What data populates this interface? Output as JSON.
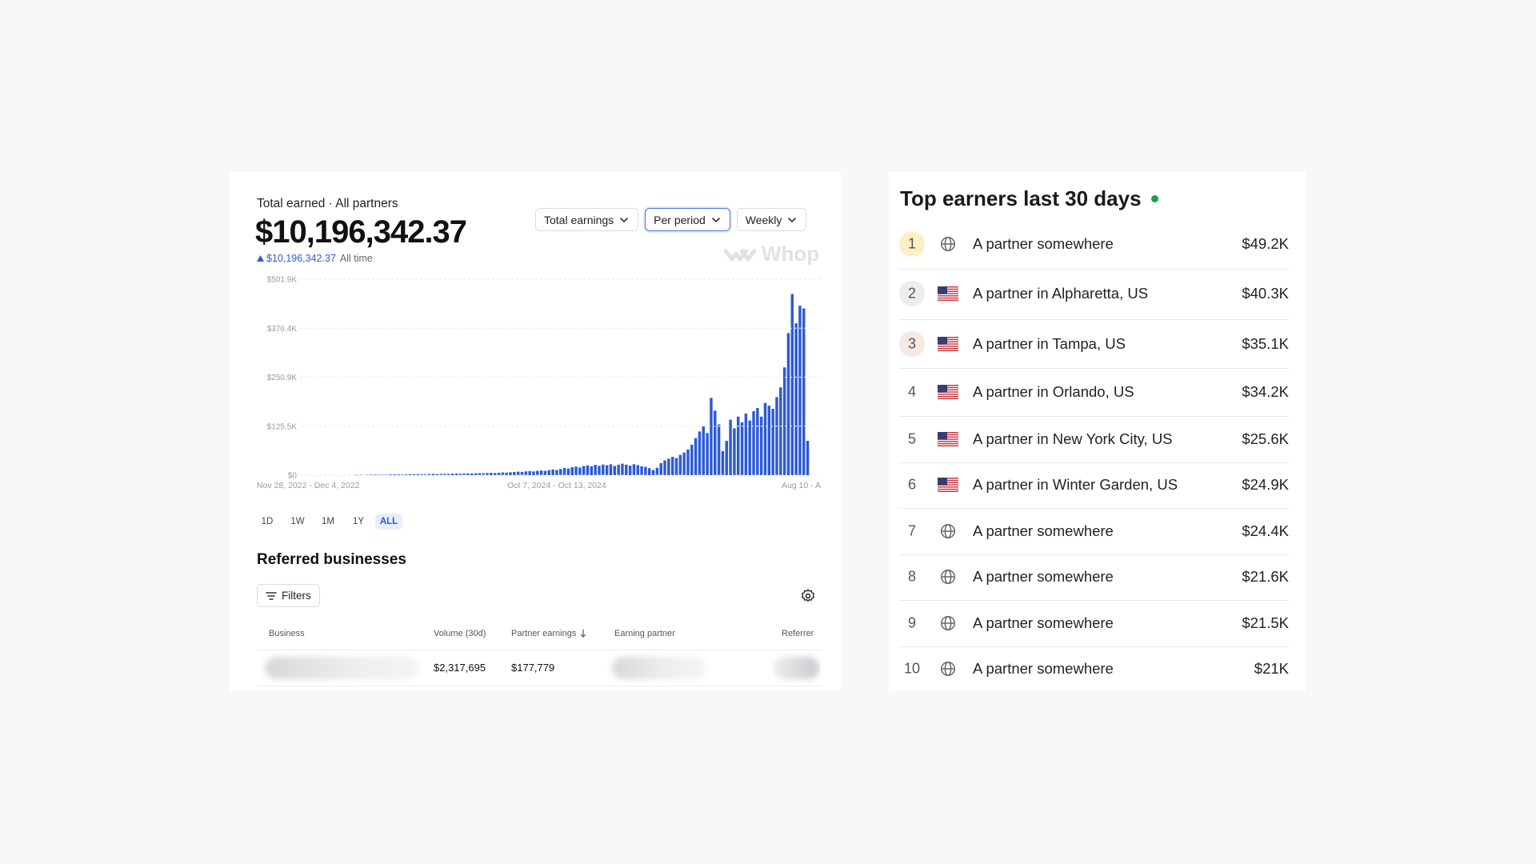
{
  "earnings_panel": {
    "label": "Total earned · All partners",
    "total": "$10,196,342.37",
    "change": "$10,196,342.37",
    "change_period": "All time",
    "dropdowns": [
      "Total earnings",
      "Per period",
      "Weekly"
    ],
    "watermark": "Whop",
    "ranges": [
      "1D",
      "1W",
      "1M",
      "1Y",
      "ALL"
    ]
  },
  "chart_data": {
    "type": "bar",
    "color": "#2c5ad6",
    "grid": true,
    "ylim": [
      0,
      501900
    ],
    "yticks": [
      {
        "value": 0,
        "label": "$0"
      },
      {
        "value": 125475,
        "label": "$125.5K"
      },
      {
        "value": 250950,
        "label": "$250.9K"
      },
      {
        "value": 376425,
        "label": "$376.4K"
      },
      {
        "value": 501900,
        "label": "$501.9K"
      }
    ],
    "categories": [
      "Nov 28, 2022 - Dec 4, 2022",
      null,
      null,
      null,
      null,
      null,
      null,
      null,
      null,
      null,
      null,
      null,
      null,
      null,
      null,
      null,
      null,
      null,
      null,
      null,
      null,
      null,
      null,
      null,
      null,
      null,
      null,
      null,
      null,
      null,
      null,
      null,
      null,
      null,
      null,
      null,
      null,
      null,
      null,
      null,
      null,
      null,
      null,
      null,
      null,
      null,
      null,
      null,
      null,
      null,
      null,
      null,
      null,
      null,
      null,
      null,
      null,
      null,
      null,
      null,
      null,
      null,
      null,
      null,
      null,
      null,
      "Oct 7, 2024 - Oct 13, 2024",
      null,
      null,
      null,
      null,
      null,
      null,
      null,
      null,
      null,
      null,
      null,
      null,
      null,
      null,
      null,
      null,
      null,
      null,
      null,
      null,
      null,
      null,
      null,
      null,
      null,
      null,
      null,
      null,
      null,
      null,
      null,
      null,
      null,
      null,
      null,
      null,
      null,
      null,
      null,
      null,
      null,
      null,
      null,
      null,
      null,
      null,
      null,
      null,
      null,
      null,
      null,
      null,
      null,
      null,
      null,
      null,
      null,
      null,
      null,
      null,
      null,
      null,
      null,
      null,
      "Aug 10 - A"
    ],
    "values": [
      0,
      0,
      0,
      0,
      0,
      0,
      0,
      0,
      0,
      0,
      0,
      0,
      0,
      0,
      1000,
      1200,
      1100,
      1300,
      1500,
      1400,
      1600,
      1800,
      1700,
      2000,
      2100,
      2300,
      2000,
      2400,
      2600,
      2500,
      2800,
      3000,
      2700,
      3100,
      3300,
      3000,
      3500,
      3800,
      3400,
      4000,
      4200,
      3900,
      4500,
      4800,
      4400,
      5000,
      5300,
      4900,
      5600,
      6000,
      5500,
      6300,
      7000,
      6600,
      7500,
      8200,
      9000,
      8500,
      9800,
      10500,
      9600,
      11200,
      12000,
      11000,
      12800,
      14500,
      13200,
      16000,
      18500,
      17000,
      20500,
      22000,
      19800,
      23500,
      25000,
      22800,
      26500,
      24000,
      27200,
      25500,
      28000,
      23800,
      26900,
      29500,
      27000,
      24500,
      28200,
      26000,
      23000,
      21500,
      18000,
      13500,
      19000,
      31000,
      38000,
      42500,
      47000,
      44000,
      52000,
      58000,
      66000,
      78000,
      95000,
      112000,
      125000,
      108000,
      198000,
      165000,
      130000,
      62000,
      88000,
      142000,
      120000,
      150000,
      135000,
      158000,
      140000,
      164000,
      172000,
      150000,
      185000,
      178000,
      170000,
      200000,
      225000,
      276000,
      364000,
      464000,
      389000,
      434000,
      427000,
      88000
    ]
  },
  "referred_businesses": {
    "title": "Referred businesses",
    "filter_button": "Filters",
    "columns": [
      "Business",
      "Volume (30d)",
      "Partner earnings",
      "Earning partner",
      "Referrer"
    ],
    "rows": [
      {
        "volume": "$2,317,695",
        "partner_earnings": "$177,779"
      }
    ]
  },
  "top_earners": {
    "title": "Top earners last 30 days",
    "rows": [
      {
        "rank": 1,
        "icon": "globe",
        "partner": "A partner somewhere",
        "amount": "$49.2K"
      },
      {
        "rank": 2,
        "icon": "us",
        "partner": "A partner in Alpharetta, US",
        "amount": "$40.3K"
      },
      {
        "rank": 3,
        "icon": "us",
        "partner": "A partner in Tampa, US",
        "amount": "$35.1K"
      },
      {
        "rank": 4,
        "icon": "us",
        "partner": "A partner in Orlando, US",
        "amount": "$34.2K"
      },
      {
        "rank": 5,
        "icon": "us",
        "partner": "A partner in New York City, US",
        "amount": "$25.6K"
      },
      {
        "rank": 6,
        "icon": "us",
        "partner": "A partner in Winter Garden, US",
        "amount": "$24.9K"
      },
      {
        "rank": 7,
        "icon": "globe",
        "partner": "A partner somewhere",
        "amount": "$24.4K"
      },
      {
        "rank": 8,
        "icon": "globe",
        "partner": "A partner somewhere",
        "amount": "$21.6K"
      },
      {
        "rank": 9,
        "icon": "globe",
        "partner": "A partner somewhere",
        "amount": "$21.5K"
      },
      {
        "rank": 10,
        "icon": "globe",
        "partner": "A partner somewhere",
        "amount": "$21K"
      }
    ]
  }
}
